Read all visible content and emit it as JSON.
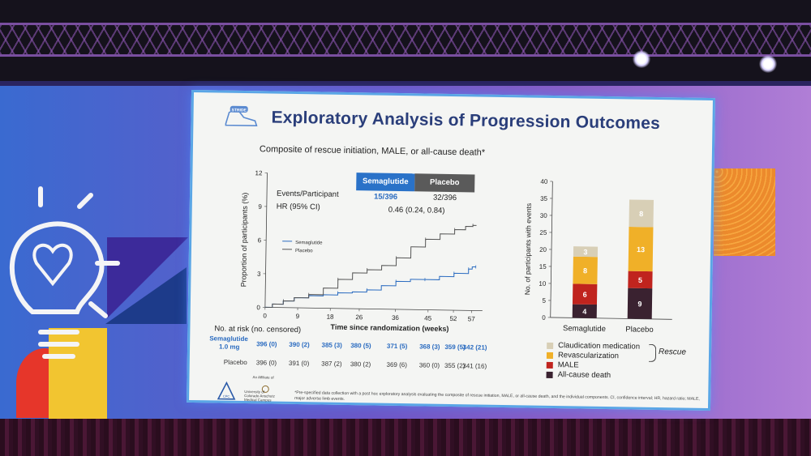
{
  "slide": {
    "title": "Exploratory Analysis of Progression Outcomes",
    "subtitle": "Composite of rescue initiation, MALE, or all-cause death*",
    "logo_text": "STRIDE",
    "footnote": "*Pre-specified data collection with a post hoc exploratory analysis evaluating the composite of rescue initiation, MALE, or all-cause death, and the individual components. CI, confidence interval; HR, hazard ratio; MALE, major adverse limb events.",
    "affiliation": {
      "label": "An Affiliate of",
      "org_short": "CPC",
      "university": "University of Colorado Anschutz Medical Campus"
    }
  },
  "km_chart": {
    "legend_buttons": {
      "semaglutide": "Semaglutide",
      "placebo": "Placebo"
    },
    "events_label": "Events/Participant",
    "hr_label": "HR (95% CI)",
    "events_semaglutide": "15/396",
    "events_placebo": "32/396",
    "hr_value": "0.46 (0.24, 0.84)",
    "inline_legend": {
      "semaglutide": "Semaglutide",
      "placebo": "Placebo"
    },
    "at_risk_header": "No. at risk (no. censored)",
    "at_risk_semaglutide_label_1": "Semaglutide",
    "at_risk_semaglutide_label_2": "1.0 mg",
    "at_risk_placebo_label": "Placebo",
    "at_risk_semaglutide": [
      "396 (0)",
      "390 (2)",
      "385 (3)",
      "380 (5)",
      "371 (5)",
      "368 (3)",
      "359 (5)",
      "342 (21)"
    ],
    "at_risk_placebo": [
      "396 (0)",
      "391 (0)",
      "387 (2)",
      "380 (2)",
      "369 (6)",
      "360 (0)",
      "355 (2)",
      "341 (16)"
    ]
  },
  "chart_data": [
    {
      "type": "line",
      "title": "",
      "xlabel": "Time since randomization (weeks)",
      "ylabel": "Proportion of participants (%)",
      "xlim": [
        0,
        60
      ],
      "ylim": [
        0,
        12
      ],
      "x_ticks": [
        0,
        9,
        18,
        26,
        36,
        45,
        52,
        57
      ],
      "y_ticks": [
        0,
        3,
        6,
        9,
        12
      ],
      "grid": false,
      "legend": "upper-left",
      "series": [
        {
          "name": "Semaglutide",
          "color": "#2a6bc0",
          "x": [
            0,
            2,
            5,
            8,
            12,
            16,
            20,
            24,
            28,
            32,
            36,
            40,
            44,
            48,
            52,
            55,
            56,
            57,
            58
          ],
          "y": [
            0,
            0.3,
            0.6,
            0.9,
            1.1,
            1.2,
            1.4,
            1.5,
            1.7,
            2.1,
            2.5,
            2.7,
            2.7,
            3.0,
            3.3,
            3.3,
            3.7,
            3.9,
            3.9
          ]
        },
        {
          "name": "Placebo",
          "color": "#555555",
          "x": [
            0,
            2,
            5,
            8,
            12,
            16,
            20,
            24,
            28,
            32,
            36,
            40,
            44,
            48,
            52,
            55,
            57,
            58
          ],
          "y": [
            0,
            0.3,
            0.6,
            0.9,
            1.2,
            1.8,
            2.6,
            3.2,
            3.5,
            3.9,
            4.6,
            5.6,
            6.3,
            6.8,
            7.2,
            7.5,
            7.6,
            7.6
          ]
        }
      ]
    },
    {
      "type": "bar",
      "title": "",
      "xlabel": "",
      "ylabel": "No. of participants with events",
      "categories": [
        "Semaglutide",
        "Placebo"
      ],
      "ylim": [
        0,
        40
      ],
      "y_ticks": [
        0,
        5,
        10,
        15,
        20,
        25,
        30,
        35,
        40
      ],
      "stacked": true,
      "legend": "below",
      "series": [
        {
          "name": "All-cause death",
          "color": "#3a2230",
          "values": [
            4,
            9
          ]
        },
        {
          "name": "MALE",
          "color": "#c0241e",
          "values": [
            6,
            5
          ]
        },
        {
          "name": "Revascularization",
          "color": "#f0b028",
          "values": [
            8,
            13
          ]
        },
        {
          "name": "Claudication medication",
          "color": "#d8cfb6",
          "values": [
            3,
            8
          ]
        }
      ],
      "bracket_label": "Rescue"
    }
  ]
}
